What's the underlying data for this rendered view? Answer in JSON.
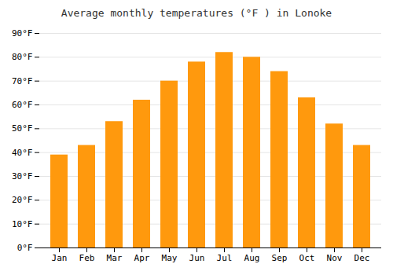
{
  "chart_data": {
    "type": "bar",
    "title": "Average monthly temperatures (°F ) in Lonoke",
    "categories": [
      "Jan",
      "Feb",
      "Mar",
      "Apr",
      "May",
      "Jun",
      "Jul",
      "Aug",
      "Sep",
      "Oct",
      "Nov",
      "Dec"
    ],
    "values": [
      39,
      43,
      53,
      62,
      70,
      78,
      82,
      80,
      74,
      63,
      52,
      43
    ],
    "color": "#ff990d",
    "ylim": [
      0,
      90
    ],
    "yticks": [
      {
        "value": 0,
        "label": "0°F"
      },
      {
        "value": 10,
        "label": "10°F"
      },
      {
        "value": 20,
        "label": "20°F"
      },
      {
        "value": 30,
        "label": "30°F"
      },
      {
        "value": 40,
        "label": "40°F"
      },
      {
        "value": 50,
        "label": "50°F"
      },
      {
        "value": 60,
        "label": "60°F"
      },
      {
        "value": 70,
        "label": "70°F"
      },
      {
        "value": 80,
        "label": "80°F"
      },
      {
        "value": 90,
        "label": "90°F"
      }
    ],
    "grid": true
  }
}
